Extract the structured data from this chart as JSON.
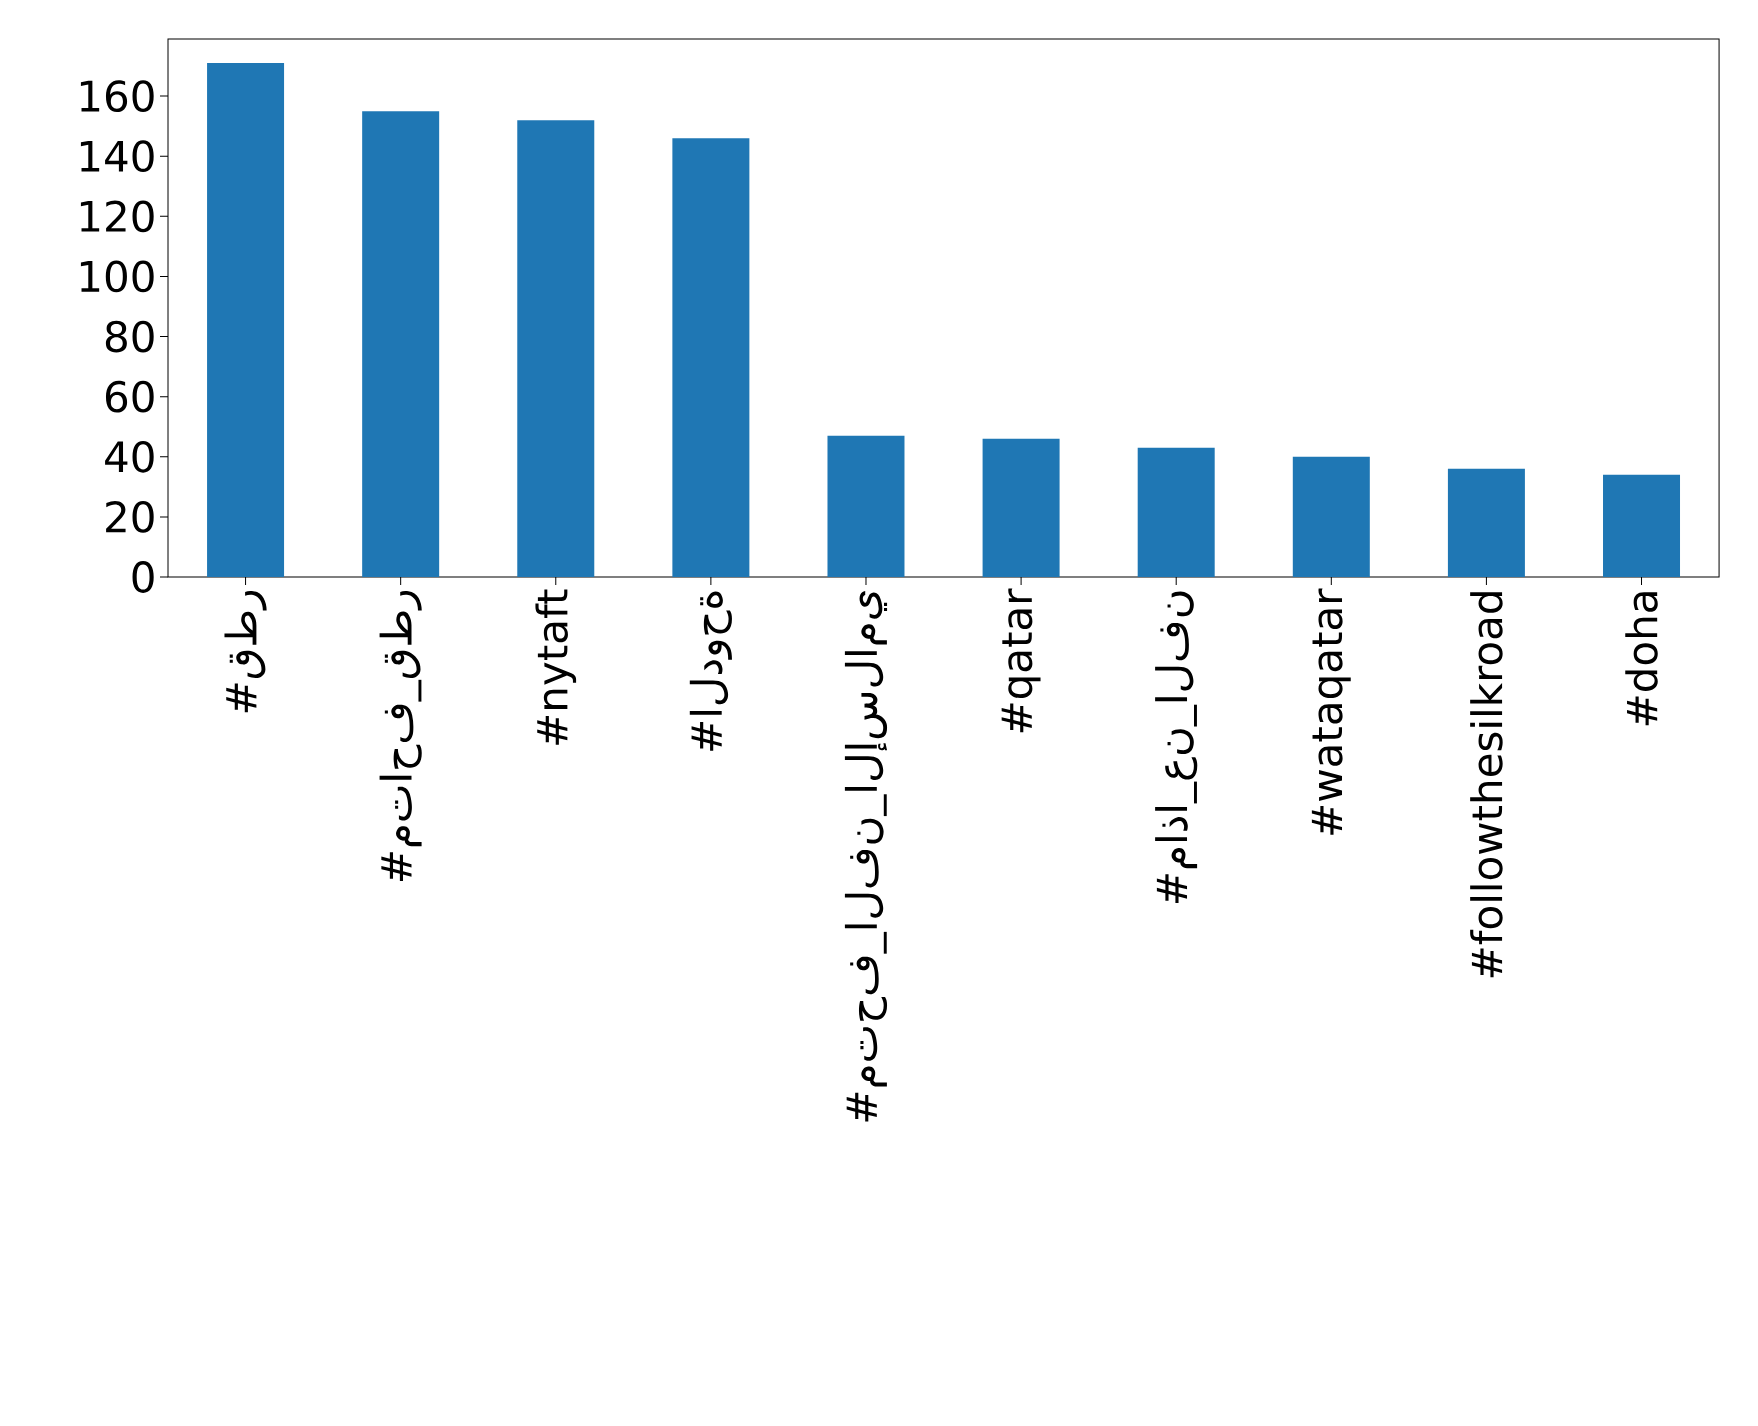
{
  "chart_data": {
    "type": "bar",
    "categories": [
      "#قطر",
      "#متاحف_قطر",
      "#nytaft",
      "#الدوحة",
      "#متحف_الفن_الإسلامي",
      "#qatar",
      "#ماذا_عن_الفن",
      "#wataqatar",
      "#followthesilkroad",
      "#doha"
    ],
    "values": [
      171,
      155,
      152,
      146,
      47,
      46,
      43,
      40,
      36,
      34
    ],
    "color": "#1f77b4",
    "ylim": [
      0,
      179
    ],
    "yticks": [
      0,
      20,
      40,
      60,
      80,
      100,
      120,
      140,
      160
    ],
    "grid": false
  }
}
